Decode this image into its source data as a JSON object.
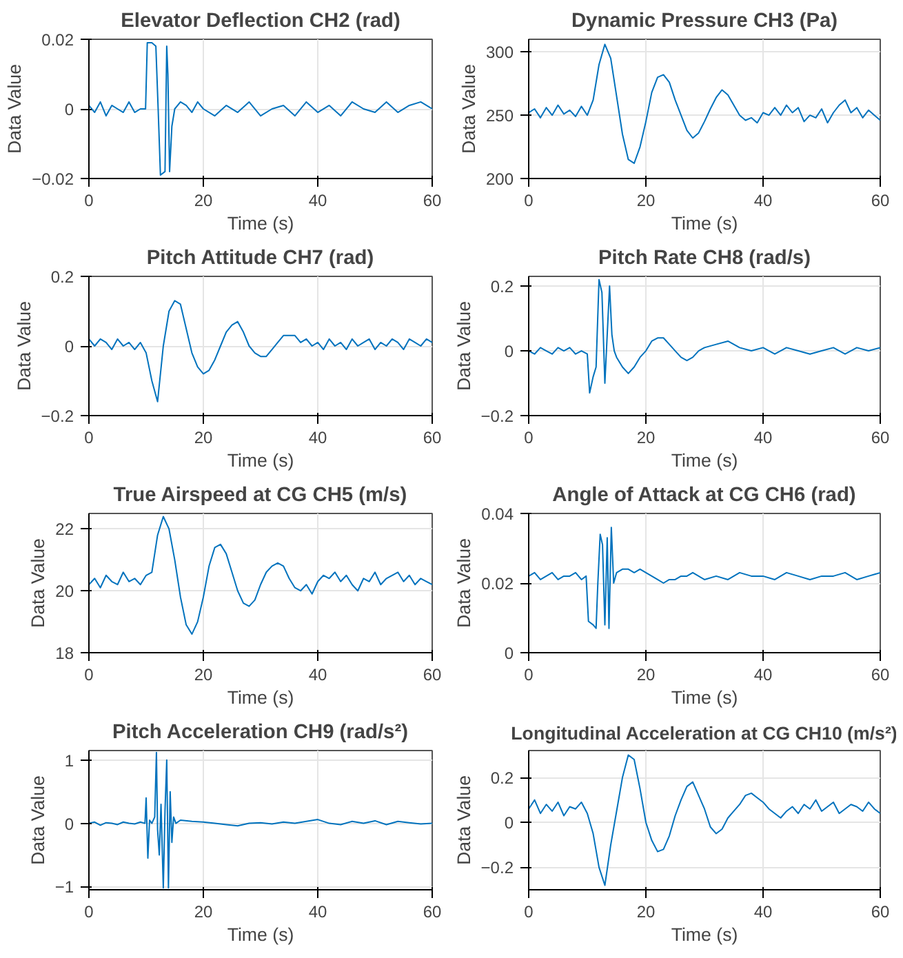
{
  "chart_data": [
    {
      "type": "line",
      "title": "Elevator Deflection CH2 (rad)",
      "xlabel": "Time (s)",
      "ylabel": "Data Value",
      "xlim": [
        0,
        60
      ],
      "xticks": [
        0,
        20,
        40,
        60
      ],
      "ylim": [
        -0.02,
        0.02
      ],
      "yticks": [
        -0.02,
        0,
        0.02
      ],
      "grid": true,
      "series": [
        {
          "color": "#0072bd",
          "x": [
            0,
            1,
            2,
            3,
            4,
            5,
            6,
            7,
            8,
            9,
            9.9,
            10.2,
            11,
            11.7,
            12.1,
            12.5,
            13.3,
            13.6,
            13.8,
            14.1,
            14.5,
            15,
            16,
            17,
            18,
            19,
            20,
            22,
            24,
            26,
            28,
            30,
            32,
            34,
            36,
            38,
            40,
            42,
            44,
            46,
            48,
            50,
            52,
            54,
            56,
            58,
            60
          ],
          "values": [
            0.001,
            -0.001,
            0.002,
            -0.002,
            0.001,
            0,
            -0.001,
            0.002,
            -0.001,
            0,
            0,
            0.019,
            0.019,
            0.018,
            0,
            -0.019,
            -0.018,
            0.018,
            0.01,
            -0.018,
            -0.005,
            0,
            0.002,
            0.001,
            -0.001,
            0.002,
            0,
            -0.002,
            0.001,
            -0.001,
            0.002,
            -0.002,
            0,
            0.001,
            -0.002,
            0.002,
            -0.001,
            0.001,
            -0.002,
            0.002,
            0,
            -0.001,
            0.002,
            -0.001,
            0.001,
            0.002,
            0
          ]
        }
      ]
    },
    {
      "type": "line",
      "title": "Dynamic Pressure CH3 (Pa)",
      "xlabel": "Time (s)",
      "ylabel": "Data Value",
      "xlim": [
        0,
        60
      ],
      "xticks": [
        0,
        20,
        40,
        60
      ],
      "ylim": [
        200,
        310
      ],
      "yticks": [
        200,
        250,
        300
      ],
      "grid": true,
      "series": [
        {
          "color": "#0072bd",
          "x": [
            0,
            1,
            2,
            3,
            4,
            5,
            6,
            7,
            8,
            9,
            10,
            11,
            12,
            13,
            14,
            15,
            16,
            17,
            18,
            19,
            20,
            21,
            22,
            23,
            24,
            25,
            26,
            27,
            28,
            29,
            30,
            31,
            32,
            33,
            34,
            35,
            36,
            37,
            38,
            39,
            40,
            41,
            42,
            43,
            44,
            45,
            46,
            47,
            48,
            49,
            50,
            51,
            52,
            53,
            54,
            55,
            56,
            57,
            58,
            59,
            60
          ],
          "values": [
            252,
            255,
            248,
            256,
            250,
            258,
            251,
            254,
            249,
            257,
            250,
            262,
            290,
            306,
            295,
            265,
            235,
            215,
            212,
            225,
            245,
            268,
            280,
            282,
            276,
            262,
            250,
            238,
            232,
            236,
            245,
            255,
            264,
            270,
            266,
            258,
            250,
            246,
            248,
            244,
            252,
            250,
            256,
            250,
            258,
            252,
            256,
            245,
            250,
            248,
            255,
            244,
            252,
            258,
            262,
            252,
            256,
            248,
            254,
            250,
            246
          ]
        }
      ]
    },
    {
      "type": "line",
      "title": "Pitch Attitude CH7 (rad)",
      "xlabel": "Time (s)",
      "ylabel": "Data Value",
      "xlim": [
        0,
        60
      ],
      "xticks": [
        0,
        20,
        40,
        60
      ],
      "ylim": [
        -0.2,
        0.2
      ],
      "yticks": [
        -0.2,
        0,
        0.2
      ],
      "grid": true,
      "series": [
        {
          "color": "#0072bd",
          "x": [
            0,
            1,
            2,
            3,
            4,
            5,
            6,
            7,
            8,
            9,
            10,
            11,
            12,
            13,
            14,
            15,
            16,
            17,
            18,
            19,
            20,
            21,
            22,
            23,
            24,
            25,
            26,
            27,
            28,
            29,
            30,
            31,
            32,
            33,
            34,
            35,
            36,
            37,
            38,
            39,
            40,
            41,
            42,
            43,
            44,
            45,
            46,
            47,
            48,
            49,
            50,
            51,
            52,
            53,
            54,
            55,
            56,
            57,
            58,
            59,
            60
          ],
          "values": [
            0.02,
            0.0,
            0.02,
            0.01,
            -0.01,
            0.02,
            0.0,
            0.01,
            -0.01,
            0.01,
            -0.02,
            -0.1,
            -0.16,
            0.0,
            0.1,
            0.13,
            0.12,
            0.05,
            -0.02,
            -0.06,
            -0.08,
            -0.07,
            -0.04,
            0.0,
            0.04,
            0.06,
            0.07,
            0.04,
            0.0,
            -0.02,
            -0.03,
            -0.03,
            -0.01,
            0.01,
            0.03,
            0.03,
            0.03,
            0.01,
            0.02,
            0.0,
            0.01,
            -0.01,
            0.02,
            0.0,
            0.01,
            -0.01,
            0.02,
            0.0,
            0.01,
            0.02,
            -0.01,
            0.01,
            0.0,
            0.02,
            0.01,
            -0.01,
            0.02,
            0.01,
            0.0,
            0.02,
            0.01
          ]
        }
      ]
    },
    {
      "type": "line",
      "title": "Pitch Rate CH8 (rad/s)",
      "xlabel": "Time (s)",
      "ylabel": "Data Value",
      "xlim": [
        0,
        60
      ],
      "xticks": [
        0,
        20,
        40,
        60
      ],
      "ylim": [
        -0.2,
        0.23
      ],
      "yticks": [
        -0.2,
        0,
        0.2
      ],
      "grid": true,
      "series": [
        {
          "color": "#0072bd",
          "x": [
            0,
            1,
            2,
            3,
            4,
            5,
            6,
            7,
            8,
            9,
            10,
            10.4,
            11,
            11.5,
            12,
            12.5,
            13,
            13.4,
            13.8,
            14.2,
            14.6,
            15,
            16,
            17,
            18,
            19,
            20,
            21,
            22,
            23,
            24,
            25,
            26,
            27,
            28,
            29,
            30,
            32,
            34,
            36,
            38,
            40,
            42,
            44,
            46,
            48,
            50,
            52,
            54,
            56,
            58,
            60
          ],
          "values": [
            0.0,
            -0.01,
            0.01,
            0.0,
            -0.01,
            0.01,
            0.0,
            0.01,
            -0.01,
            0.0,
            -0.01,
            -0.13,
            -0.08,
            -0.05,
            0.22,
            0.18,
            -0.1,
            0.05,
            0.2,
            0.05,
            0.0,
            -0.02,
            -0.05,
            -0.07,
            -0.05,
            -0.02,
            0.0,
            0.03,
            0.04,
            0.04,
            0.02,
            0.0,
            -0.02,
            -0.03,
            -0.02,
            0.0,
            0.01,
            0.02,
            0.03,
            0.01,
            0.0,
            0.01,
            -0.01,
            0.01,
            0.0,
            -0.01,
            0.0,
            0.01,
            -0.01,
            0.01,
            0.0,
            0.01
          ]
        }
      ]
    },
    {
      "type": "line",
      "title": "True Airspeed at CG CH5 (m/s)",
      "xlabel": "Time (s)",
      "ylabel": "Data Value",
      "xlim": [
        0,
        60
      ],
      "xticks": [
        0,
        20,
        40,
        60
      ],
      "ylim": [
        18,
        22.5
      ],
      "yticks": [
        18,
        20,
        22
      ],
      "grid": true,
      "series": [
        {
          "color": "#0072bd",
          "x": [
            0,
            1,
            2,
            3,
            4,
            5,
            6,
            7,
            8,
            9,
            10,
            11,
            12,
            13,
            14,
            15,
            16,
            17,
            18,
            19,
            20,
            21,
            22,
            23,
            24,
            25,
            26,
            27,
            28,
            29,
            30,
            31,
            32,
            33,
            34,
            35,
            36,
            37,
            38,
            39,
            40,
            41,
            42,
            43,
            44,
            45,
            46,
            47,
            48,
            49,
            50,
            51,
            52,
            53,
            54,
            55,
            56,
            57,
            58,
            59,
            60
          ],
          "values": [
            20.2,
            20.4,
            20.1,
            20.5,
            20.3,
            20.2,
            20.6,
            20.3,
            20.4,
            20.2,
            20.5,
            20.6,
            21.8,
            22.4,
            22.0,
            21.0,
            19.8,
            18.9,
            18.6,
            19.0,
            19.8,
            20.8,
            21.4,
            21.5,
            21.2,
            20.6,
            20.0,
            19.6,
            19.5,
            19.7,
            20.2,
            20.6,
            20.8,
            20.9,
            20.8,
            20.4,
            20.1,
            20.0,
            20.2,
            19.9,
            20.3,
            20.5,
            20.4,
            20.6,
            20.3,
            20.5,
            20.2,
            20.0,
            20.4,
            20.3,
            20.6,
            20.2,
            20.4,
            20.5,
            20.6,
            20.3,
            20.5,
            20.2,
            20.4,
            20.3,
            20.2
          ]
        }
      ]
    },
    {
      "type": "line",
      "title": "Angle of Attack at CG CH6 (rad)",
      "xlabel": "Time (s)",
      "ylabel": "Data Value",
      "xlim": [
        0,
        60
      ],
      "xticks": [
        0,
        20,
        40,
        60
      ],
      "ylim": [
        0,
        0.04
      ],
      "yticks": [
        0,
        0.02,
        0.04
      ],
      "grid": true,
      "series": [
        {
          "color": "#0072bd",
          "x": [
            0,
            1,
            2,
            3,
            4,
            5,
            6,
            7,
            8,
            9,
            9.8,
            10.2,
            11,
            11.5,
            11.8,
            12.2,
            12.6,
            13,
            13.4,
            13.7,
            14.1,
            14.5,
            15,
            16,
            17,
            18,
            19,
            20,
            21,
            22,
            23,
            24,
            25,
            26,
            27,
            28,
            29,
            30,
            32,
            34,
            36,
            38,
            40,
            42,
            44,
            46,
            48,
            50,
            52,
            54,
            56,
            58,
            60
          ],
          "values": [
            0.022,
            0.023,
            0.021,
            0.022,
            0.023,
            0.021,
            0.022,
            0.022,
            0.023,
            0.021,
            0.022,
            0.009,
            0.008,
            0.007,
            0.02,
            0.034,
            0.031,
            0.008,
            0.033,
            0.007,
            0.036,
            0.02,
            0.023,
            0.024,
            0.024,
            0.023,
            0.024,
            0.023,
            0.022,
            0.021,
            0.02,
            0.021,
            0.021,
            0.022,
            0.022,
            0.023,
            0.022,
            0.021,
            0.022,
            0.021,
            0.023,
            0.022,
            0.022,
            0.021,
            0.023,
            0.022,
            0.021,
            0.022,
            0.022,
            0.023,
            0.021,
            0.022,
            0.023
          ]
        }
      ]
    },
    {
      "type": "line",
      "title": "Pitch Acceleration CH9 (rad/s²)",
      "xlabel": "Time (s)",
      "ylabel": "Data Value",
      "xlim": [
        0,
        60
      ],
      "xticks": [
        0,
        20,
        40,
        60
      ],
      "ylim": [
        -1.05,
        1.15
      ],
      "yticks": [
        -1,
        0,
        1
      ],
      "grid": true,
      "series": [
        {
          "color": "#0072bd",
          "x": [
            0,
            1,
            2,
            3,
            4,
            5,
            6,
            7,
            8,
            9,
            9.8,
            10.0,
            10.3,
            10.6,
            11,
            11.5,
            11.8,
            12.0,
            12.3,
            12.6,
            13,
            13.3,
            13.6,
            13.9,
            14.2,
            14.5,
            14.8,
            15.2,
            16,
            18,
            20,
            22,
            24,
            26,
            28,
            30,
            32,
            34,
            36,
            38,
            40,
            42,
            44,
            46,
            48,
            50,
            52,
            54,
            56,
            58,
            60
          ],
          "values": [
            0,
            0.02,
            -0.03,
            0.01,
            0.0,
            -0.02,
            0.02,
            0.0,
            -0.01,
            0.02,
            0.0,
            0.4,
            -0.55,
            0.05,
            0.0,
            0.1,
            1.12,
            -0.1,
            -0.5,
            0.3,
            -1.02,
            0.2,
            1.0,
            -1.02,
            0.5,
            -0.3,
            0.1,
            0.0,
            0.05,
            0.03,
            0.02,
            0.0,
            -0.02,
            -0.04,
            0.0,
            0.01,
            -0.01,
            0.02,
            0.0,
            0.03,
            0.06,
            0.0,
            -0.02,
            0.03,
            0.0,
            0.04,
            -0.02,
            0.03,
            0.01,
            -0.01,
            0.0
          ]
        }
      ]
    },
    {
      "type": "line",
      "title": "Longitudinal Acceleration at CG CH10 (m/s²)",
      "xlabel": "Time (s)",
      "ylabel": "Data Value",
      "xlim": [
        0,
        60
      ],
      "xticks": [
        0,
        20,
        40,
        60
      ],
      "ylim": [
        -0.3,
        0.32
      ],
      "yticks": [
        -0.2,
        0,
        0.2
      ],
      "grid": true,
      "series": [
        {
          "color": "#0072bd",
          "x": [
            0,
            1,
            2,
            3,
            4,
            5,
            6,
            7,
            8,
            9,
            10,
            11,
            12,
            13,
            14,
            15,
            16,
            17,
            18,
            19,
            20,
            21,
            22,
            23,
            24,
            25,
            26,
            27,
            28,
            29,
            30,
            31,
            32,
            33,
            34,
            35,
            36,
            37,
            38,
            39,
            40,
            41,
            42,
            43,
            44,
            45,
            46,
            47,
            48,
            49,
            50,
            51,
            52,
            53,
            54,
            55,
            56,
            57,
            58,
            59,
            60
          ],
          "values": [
            0.06,
            0.1,
            0.04,
            0.08,
            0.05,
            0.09,
            0.03,
            0.07,
            0.06,
            0.09,
            0.04,
            -0.05,
            -0.2,
            -0.28,
            -0.1,
            0.05,
            0.2,
            0.3,
            0.28,
            0.15,
            0.0,
            -0.08,
            -0.13,
            -0.12,
            -0.06,
            0.03,
            0.1,
            0.16,
            0.18,
            0.12,
            0.06,
            -0.02,
            -0.05,
            -0.03,
            0.02,
            0.05,
            0.08,
            0.12,
            0.13,
            0.11,
            0.09,
            0.06,
            0.04,
            0.02,
            0.05,
            0.07,
            0.04,
            0.08,
            0.06,
            0.1,
            0.05,
            0.07,
            0.09,
            0.04,
            0.06,
            0.08,
            0.07,
            0.05,
            0.09,
            0.06,
            0.04
          ]
        }
      ]
    }
  ]
}
